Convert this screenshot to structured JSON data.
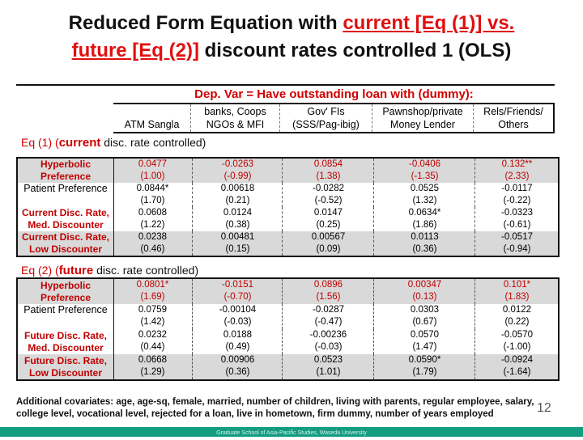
{
  "title": {
    "l1a": "Reduced Form Equation with ",
    "l1b": "current [Eq (1)] vs.",
    "l2a": "future [Eq (2)]",
    "l2b": " discount rates controlled 1 (OLS)"
  },
  "dep_var": "Dep. Var = Have outstanding loan with  (dummy):",
  "columns": [
    [
      "",
      "ATM Sangla"
    ],
    [
      "banks, Coops",
      "NGOs & MFI"
    ],
    [
      "Gov' FIs",
      "(SSS/Pag-ibig)"
    ],
    [
      "Pawnshop/private",
      "Money Lender"
    ],
    [
      "Rels/Friends/",
      "Others"
    ]
  ],
  "eq1": {
    "a": "Eq (1) (",
    "b": "current",
    "c": " disc. rate controlled)",
    "rows": [
      {
        "label": [
          "Hyperbolic",
          "Preference"
        ],
        "red_label": true,
        "red_vals": true,
        "shaded": true,
        "vals": [
          [
            "0.0477",
            "(1.00)"
          ],
          [
            "-0.0263",
            "(-0.99)"
          ],
          [
            "0.0854",
            "(1.38)"
          ],
          [
            "-0.0406",
            "(-1.35)"
          ],
          [
            "0.132**",
            "(2.33)"
          ]
        ]
      },
      {
        "label": [
          "Patient Preference",
          ""
        ],
        "red_label": false,
        "red_vals": false,
        "shaded": false,
        "vals": [
          [
            "0.0844*",
            "(1.70)"
          ],
          [
            "0.00618",
            "(0.21)"
          ],
          [
            "-0.0282",
            "(-0.52)"
          ],
          [
            "0.0525",
            "(1.32)"
          ],
          [
            "-0.0117",
            "(-0.22)"
          ]
        ]
      },
      {
        "label": [
          "Current Disc. Rate,",
          "Med. Discounter"
        ],
        "red_label": true,
        "red_vals": false,
        "shaded": false,
        "vals": [
          [
            "0.0608",
            "(1.22)"
          ],
          [
            "0.0124",
            "(0.38)"
          ],
          [
            "0.0147",
            "(0.25)"
          ],
          [
            "0.0634*",
            "(1.86)"
          ],
          [
            "-0.0323",
            "(-0.61)"
          ]
        ]
      },
      {
        "label": [
          "Current Disc. Rate,",
          "Low Discounter"
        ],
        "red_label": true,
        "red_vals": false,
        "shaded": true,
        "vals": [
          [
            "0.0238",
            "(0.46)"
          ],
          [
            "0.00481",
            "(0.15)"
          ],
          [
            "0.00567",
            "(0.09)"
          ],
          [
            "0.0113",
            "(0.36)"
          ],
          [
            "-0.0517",
            "(-0.94)"
          ]
        ]
      }
    ]
  },
  "eq2": {
    "a": "Eq (2) (",
    "b": "future",
    "c": " disc. rate controlled)",
    "rows": [
      {
        "label": [
          "Hyperbolic",
          "Preference"
        ],
        "red_label": true,
        "red_vals": true,
        "shaded": true,
        "vals": [
          [
            "0.0801*",
            "(1.69)"
          ],
          [
            "-0.0151",
            "(-0.70)"
          ],
          [
            "0.0896",
            "(1.56)"
          ],
          [
            "0.00347",
            "(0.13)"
          ],
          [
            "0.101*",
            "(1.83)"
          ]
        ]
      },
      {
        "label": [
          "Patient Preference",
          ""
        ],
        "red_label": false,
        "red_vals": false,
        "shaded": false,
        "vals": [
          [
            "0.0759",
            "(1.42)"
          ],
          [
            "-0.00104",
            "(-0.03)"
          ],
          [
            "-0.0287",
            "(-0.47)"
          ],
          [
            "0.0303",
            "(0.67)"
          ],
          [
            "0.0122",
            "(0.22)"
          ]
        ]
      },
      {
        "label": [
          "Future Disc. Rate,",
          "Med. Discounter"
        ],
        "red_label": true,
        "red_vals": false,
        "shaded": false,
        "vals": [
          [
            "0.0232",
            "(0.44)"
          ],
          [
            "0.0188",
            "(0.49)"
          ],
          [
            "-0.00236",
            "(-0.03)"
          ],
          [
            "0.0570",
            "(1.47)"
          ],
          [
            "-0.0570",
            "(-1.00)"
          ]
        ]
      },
      {
        "label": [
          "Future Disc. Rate,",
          "Low Discounter"
        ],
        "red_label": true,
        "red_vals": false,
        "shaded": true,
        "vals": [
          [
            "0.0668",
            "(1.29)"
          ],
          [
            "0.00906",
            "(0.36)"
          ],
          [
            "0.0523",
            "(1.01)"
          ],
          [
            "0.0590*",
            "(1.79)"
          ],
          [
            "-0.0924",
            "(-1.64)"
          ]
        ]
      }
    ]
  },
  "note": "Additional covariates: age, age-sq, female, married, number of children, living with parents, regular employee, salary, college level, vocational level, rejected for a loan, live in hometown, firm dummy, number of years employed",
  "page_number": "12",
  "footer": "Graduate School of Asia-Pacific Studies, Waseda University"
}
